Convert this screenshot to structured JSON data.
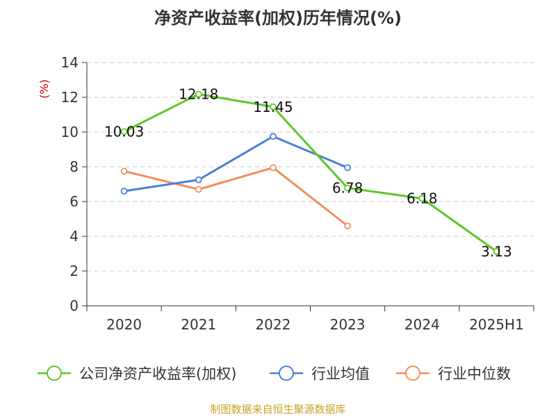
{
  "chart_data": {
    "type": "line",
    "title": "净资产收益率(加权)历年情况(%)",
    "ylabel": "(%)",
    "ylim": [
      0,
      14
    ],
    "yticks": [
      0,
      2,
      4,
      6,
      8,
      10,
      12,
      14
    ],
    "grid": true,
    "legend_position": "bottom",
    "categories": [
      "2020",
      "2021",
      "2022",
      "2023",
      "2024",
      "2025H1"
    ],
    "series": [
      {
        "name": "公司净资产收益率(加权)",
        "color": "#5cc72a",
        "values": [
          10.03,
          12.18,
          11.45,
          6.78,
          6.18,
          3.13
        ],
        "labels": [
          "10.03",
          "12.18",
          "11.45",
          "6.78",
          "6.18",
          "3.13"
        ]
      },
      {
        "name": "行业均值",
        "color": "#4a7fd6",
        "values": [
          6.6,
          7.25,
          9.75,
          7.95,
          null,
          null
        ]
      },
      {
        "name": "行业中位数",
        "color": "#f58d5a",
        "values": [
          7.75,
          6.7,
          7.95,
          4.6,
          null,
          null
        ]
      }
    ],
    "source": "制图数据来自恒生聚源数据库"
  }
}
